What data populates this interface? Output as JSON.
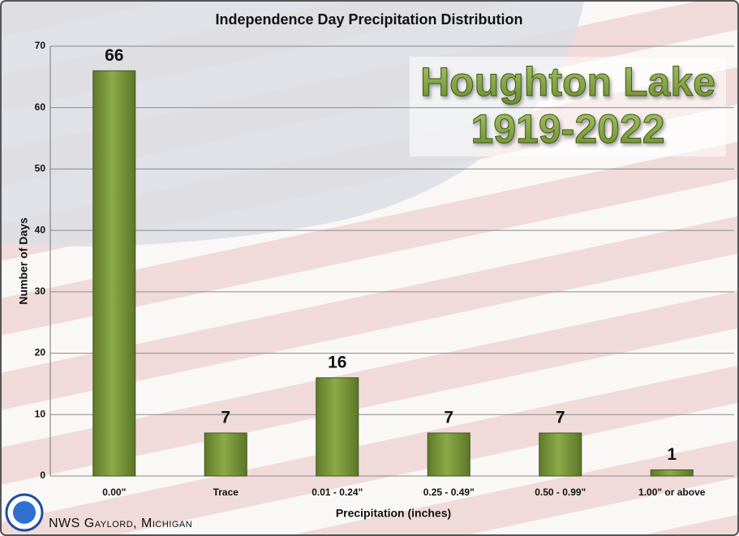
{
  "chart_data": {
    "type": "bar",
    "title": "Independence Day Precipitation Distribution",
    "categories": [
      "0.00\"",
      "Trace",
      "0.01 - 0.24\"",
      "0.25 - 0.49\"",
      "0.50 - 0.99\"",
      "1.00\" or above"
    ],
    "values": [
      66,
      7,
      16,
      7,
      7,
      1
    ],
    "color": "#77933c",
    "ylim": [
      0,
      70
    ],
    "yticks": [
      0,
      10,
      20,
      30,
      40,
      50,
      60,
      70
    ],
    "grid": true,
    "x_label": "Precipitation (inches)",
    "y_label": "Number of Days",
    "annotation": [
      "Houghton Lake",
      "1919-2022"
    ],
    "footer": "NWS Gaylord, Michigan"
  }
}
